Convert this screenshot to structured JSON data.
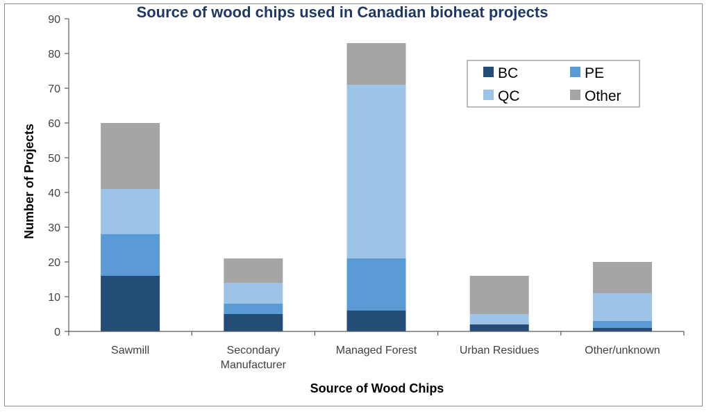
{
  "chart_data": {
    "type": "bar",
    "stacked": true,
    "title": "Source of wood chips used in Canadian bioheat projects",
    "xlabel": "Source of Wood Chips",
    "ylabel": "Number of Projects",
    "categories": [
      [
        "Sawmill"
      ],
      [
        "Secondary",
        "Manufacturer"
      ],
      [
        "Managed Forest"
      ],
      [
        "Urban Residues"
      ],
      [
        "Other/unknown"
      ]
    ],
    "ylim": [
      0,
      90
    ],
    "yticks": [
      0,
      10,
      20,
      30,
      40,
      50,
      60,
      70,
      80,
      90
    ],
    "grid": false,
    "legend_position": "top-right",
    "series": [
      {
        "name": "BC",
        "color": "#234d77",
        "values": [
          16,
          5,
          6,
          2,
          1
        ]
      },
      {
        "name": "PE",
        "color": "#5b9bd5",
        "values": [
          12,
          3,
          15,
          0,
          2
        ]
      },
      {
        "name": "QC",
        "color": "#9dc3e6",
        "values": [
          13,
          6,
          50,
          3,
          8
        ]
      },
      {
        "name": "Other",
        "color": "#a5a5a5",
        "values": [
          19,
          7,
          12,
          11,
          9
        ]
      }
    ]
  }
}
